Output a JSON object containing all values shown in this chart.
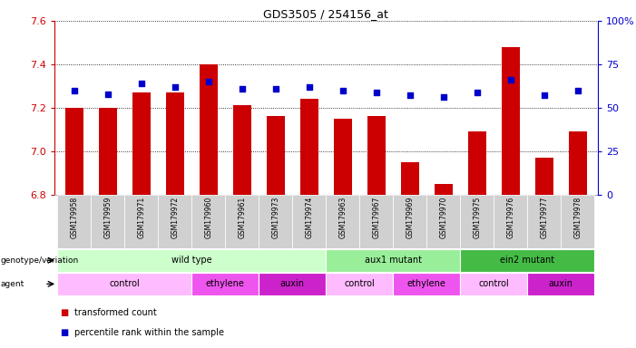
{
  "title": "GDS3505 / 254156_at",
  "samples": [
    "GSM179958",
    "GSM179959",
    "GSM179971",
    "GSM179972",
    "GSM179960",
    "GSM179961",
    "GSM179973",
    "GSM179974",
    "GSM179963",
    "GSM179967",
    "GSM179969",
    "GSM179970",
    "GSM179975",
    "GSM179976",
    "GSM179977",
    "GSM179978"
  ],
  "bar_values": [
    7.2,
    7.2,
    7.27,
    7.27,
    7.4,
    7.21,
    7.16,
    7.24,
    7.15,
    7.16,
    6.95,
    6.85,
    7.09,
    7.48,
    6.97,
    7.09
  ],
  "percentile_values": [
    60,
    58,
    64,
    62,
    65,
    61,
    61,
    62,
    60,
    59,
    57,
    56,
    59,
    66,
    57,
    60
  ],
  "ylim_left": [
    6.8,
    7.6
  ],
  "ylim_right": [
    0,
    100
  ],
  "bar_color": "#cc0000",
  "dot_color": "#0000cc",
  "bar_bottom": 6.8,
  "genotype_groups": [
    {
      "label": "wild type",
      "start": 0,
      "end": 8,
      "color": "#ccffcc"
    },
    {
      "label": "aux1 mutant",
      "start": 8,
      "end": 12,
      "color": "#99ee99"
    },
    {
      "label": "ein2 mutant",
      "start": 12,
      "end": 16,
      "color": "#44bb44"
    }
  ],
  "agent_groups": [
    {
      "label": "control",
      "start": 0,
      "end": 4,
      "color": "#ffbbff"
    },
    {
      "label": "ethylene",
      "start": 4,
      "end": 6,
      "color": "#ee55ee"
    },
    {
      "label": "auxin",
      "start": 6,
      "end": 8,
      "color": "#cc22cc"
    },
    {
      "label": "control",
      "start": 8,
      "end": 10,
      "color": "#ffbbff"
    },
    {
      "label": "ethylene",
      "start": 10,
      "end": 12,
      "color": "#ee55ee"
    },
    {
      "label": "control",
      "start": 12,
      "end": 14,
      "color": "#ffbbff"
    },
    {
      "label": "auxin",
      "start": 14,
      "end": 16,
      "color": "#cc22cc"
    }
  ],
  "legend_items": [
    {
      "label": "transformed count",
      "color": "#cc0000"
    },
    {
      "label": "percentile rank within the sample",
      "color": "#0000cc"
    }
  ],
  "background_color": "#ffffff",
  "tick_label_color_left": "#cc0000",
  "tick_label_color_right": "#0000cc",
  "left_ticks": [
    6.8,
    7.0,
    7.2,
    7.4,
    7.6
  ],
  "right_ticks": [
    0,
    25,
    50,
    75,
    100
  ],
  "right_tick_labels": [
    "0",
    "25",
    "50",
    "75",
    "100%"
  ]
}
